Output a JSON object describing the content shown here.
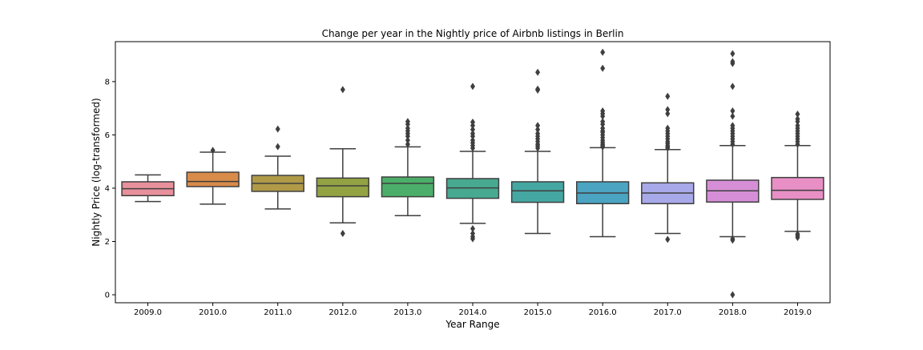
{
  "chart_data": {
    "type": "box",
    "title": "Change per year in the Nightly price of Airbnb listings in Berlin",
    "xlabel": "Year Range",
    "ylabel": "Nightly Price (log-transformed)",
    "ylim": [
      -0.3,
      9.5
    ],
    "yticks": [
      "0",
      "2",
      "4",
      "6",
      "8"
    ],
    "grid": false,
    "categories": [
      "2009.0",
      "2010.0",
      "2011.0",
      "2012.0",
      "2013.0",
      "2014.0",
      "2015.0",
      "2016.0",
      "2017.0",
      "2018.0",
      "2019.0"
    ],
    "boxes": [
      {
        "q1": 3.72,
        "median": 3.98,
        "q3": 4.24,
        "whisker_low": 3.5,
        "whisker_high": 4.5,
        "outliers": []
      },
      {
        "q1": 4.06,
        "median": 4.25,
        "q3": 4.6,
        "whisker_low": 3.4,
        "whisker_high": 5.35,
        "outliers": [
          5.42
        ]
      },
      {
        "q1": 3.88,
        "median": 4.18,
        "q3": 4.48,
        "whisker_low": 3.22,
        "whisker_high": 5.2,
        "outliers": [
          5.56,
          6.22
        ]
      },
      {
        "q1": 3.68,
        "median": 4.09,
        "q3": 4.38,
        "whisker_low": 2.7,
        "whisker_high": 5.48,
        "outliers": [
          2.3,
          7.7
        ]
      },
      {
        "q1": 3.68,
        "median": 4.18,
        "q3": 4.42,
        "whisker_low": 2.97,
        "whisker_high": 5.55,
        "outliers": [
          5.65,
          5.8,
          5.95,
          6.05,
          6.15,
          6.25,
          6.4,
          6.5
        ]
      },
      {
        "q1": 3.62,
        "median": 4.01,
        "q3": 4.36,
        "whisker_low": 2.68,
        "whisker_high": 5.38,
        "outliers": [
          2.1,
          2.18,
          2.3,
          2.48,
          5.5,
          5.6,
          5.7,
          5.8,
          5.95,
          6.05,
          6.2,
          6.35,
          6.48,
          7.82
        ]
      },
      {
        "q1": 3.47,
        "median": 3.9,
        "q3": 4.24,
        "whisker_low": 2.3,
        "whisker_high": 5.38,
        "outliers": [
          5.5,
          5.58,
          5.65,
          5.75,
          5.85,
          5.95,
          6.05,
          6.2,
          6.35,
          7.68,
          7.72,
          8.35
        ]
      },
      {
        "q1": 3.42,
        "median": 3.82,
        "q3": 4.24,
        "whisker_low": 2.18,
        "whisker_high": 5.52,
        "outliers": [
          5.55,
          5.6,
          5.65,
          5.72,
          5.8,
          5.9,
          6.0,
          6.1,
          6.15,
          6.25,
          6.4,
          6.5,
          6.7,
          6.8,
          6.9,
          8.5,
          9.1
        ]
      },
      {
        "q1": 3.42,
        "median": 3.82,
        "q3": 4.2,
        "whisker_low": 2.3,
        "whisker_high": 5.45,
        "outliers": [
          2.08,
          5.5,
          5.55,
          5.6,
          5.68,
          5.75,
          5.85,
          5.95,
          6.05,
          6.15,
          6.25,
          6.8,
          6.95,
          7.45
        ]
      },
      {
        "q1": 3.48,
        "median": 3.9,
        "q3": 4.3,
        "whisker_low": 2.18,
        "whisker_high": 5.6,
        "outliers": [
          0.0,
          2.05,
          2.1,
          5.65,
          5.75,
          5.85,
          5.95,
          6.05,
          6.15,
          6.25,
          6.35,
          6.7,
          6.9,
          7.82,
          8.68,
          8.75,
          9.05
        ]
      },
      {
        "q1": 3.58,
        "median": 3.92,
        "q3": 4.4,
        "whisker_low": 2.38,
        "whisker_high": 5.6,
        "outliers": [
          2.15,
          2.22,
          2.28,
          5.65,
          5.75,
          5.85,
          5.95,
          6.05,
          6.15,
          6.25,
          6.35,
          6.5,
          6.6,
          6.78
        ]
      }
    ],
    "colors": [
      "#e8909c",
      "#d98b49",
      "#b09a48",
      "#93a243",
      "#4caf69",
      "#47aa90",
      "#45a7a2",
      "#4aa4c2",
      "#a8a9e8",
      "#d68fd6",
      "#e88fc6"
    ],
    "line_color": "#3f3f3f"
  }
}
